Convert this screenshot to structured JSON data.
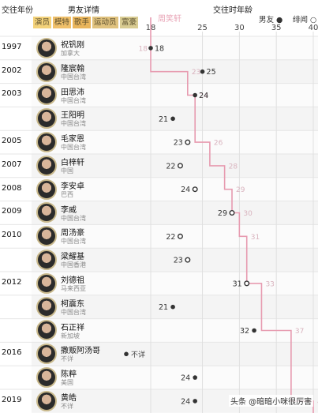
{
  "header": {
    "col_year": "交往年份",
    "col_detail": "男友详情",
    "col_age": "交往时年龄",
    "line_label": "周笑轩",
    "categories": [
      {
        "label": "演员",
        "color": "#f3d27a"
      },
      {
        "label": "模特",
        "color": "#f0c06a"
      },
      {
        "label": "歌手",
        "color": "#e9b55c"
      },
      {
        "label": "运动员",
        "color": "#e0c27e"
      },
      {
        "label": "富豪",
        "color": "#d9cc92"
      }
    ],
    "legend_boyfriend": "男友",
    "legend_rumor": "绯闻"
  },
  "rows": [
    {
      "year": "1997",
      "name": "祝钒刚",
      "region": "加拿大",
      "age": 18,
      "her_age": 18,
      "type": "boyfriend"
    },
    {
      "year": "2002",
      "name": "隆宸翰",
      "region": "中国台湾",
      "age": 25,
      "her_age": 23,
      "type": "boyfriend"
    },
    {
      "year": "2003",
      "name": "田思沛",
      "region": "中国台湾",
      "age": 24,
      "her_age": 24,
      "type": "boyfriend"
    },
    {
      "year": "",
      "name": "王阳明",
      "region": "中国台湾",
      "age": 21,
      "her_age": null,
      "type": "boyfriend"
    },
    {
      "year": "2005",
      "name": "毛家恩",
      "region": "中国台湾",
      "age": 23,
      "her_age": 26,
      "type": "rumor"
    },
    {
      "year": "2007",
      "name": "白梓轩",
      "region": "中国",
      "age": 22,
      "her_age": 28,
      "type": "rumor"
    },
    {
      "year": "2008",
      "name": "李安卓",
      "region": "巴西",
      "age": 24,
      "her_age": 29,
      "type": "rumor"
    },
    {
      "year": "2009",
      "name": "李威",
      "region": "中国台湾",
      "age": 29,
      "her_age": 30,
      "type": "rumor"
    },
    {
      "year": "2010",
      "name": "周汤豪",
      "region": "中国台湾",
      "age": 22,
      "her_age": 31,
      "type": "rumor"
    },
    {
      "year": "",
      "name": "梁耀基",
      "region": "中国香港",
      "age": 23,
      "her_age": null,
      "type": "rumor"
    },
    {
      "year": "2012",
      "name": "刘德祖",
      "region": "马来西亚",
      "age": 31,
      "her_age": 33,
      "type": "rumor"
    },
    {
      "year": "",
      "name": "柯震东",
      "region": "中国台湾",
      "age": 21,
      "her_age": null,
      "type": "boyfriend"
    },
    {
      "year": "",
      "name": "石正祥",
      "region": "新加坡",
      "age": 32,
      "her_age": 37,
      "type": "boyfriend"
    },
    {
      "year": "2016",
      "name": "撒贩阿汤哥",
      "region": "不详",
      "age": null,
      "age_text": "不详",
      "her_age": null,
      "type": "boyfriend"
    },
    {
      "year": "",
      "name": "陈粹",
      "region": "美国",
      "age": 24,
      "her_age": null,
      "type": "boyfriend"
    },
    {
      "year": "2019",
      "name": "黄皓",
      "region": "不详",
      "age": 24,
      "her_age": 40,
      "type": "boyfriend"
    }
  ],
  "chart_data": {
    "type": "scatter",
    "title": "",
    "xlabel": "交往时年龄",
    "ylabel": "交往年份",
    "x_ticks": [
      18,
      25,
      30,
      35,
      40
    ],
    "xlim": [
      18,
      40
    ],
    "series": [
      {
        "name": "男友",
        "points": [
          {
            "name": "祝钒刚",
            "x": 18
          },
          {
            "name": "隆宸翰",
            "x": 25
          },
          {
            "name": "田思沛",
            "x": 24
          },
          {
            "name": "王阳明",
            "x": 21
          },
          {
            "name": "柯震东",
            "x": 21
          },
          {
            "name": "石正祥",
            "x": 32
          },
          {
            "name": "陈粹",
            "x": 24
          },
          {
            "name": "黄皓",
            "x": 24
          }
        ]
      },
      {
        "name": "绯闻",
        "points": [
          {
            "name": "毛家恩",
            "x": 23
          },
          {
            "name": "白梓轩",
            "x": 22
          },
          {
            "name": "李安卓",
            "x": 24
          },
          {
            "name": "李威",
            "x": 29
          },
          {
            "name": "周汤豪",
            "x": 22
          },
          {
            "name": "梁耀基",
            "x": 23
          },
          {
            "name": "刘德祖",
            "x": 31
          }
        ]
      },
      {
        "name": "周笑轩",
        "type": "step-line",
        "points": [
          18,
          23,
          24,
          26,
          28,
          29,
          30,
          31,
          33,
          37,
          40
        ]
      }
    ],
    "grid": true,
    "legend_position": "top-right"
  },
  "watermark": "头条 @暗暗小咪很厉害"
}
